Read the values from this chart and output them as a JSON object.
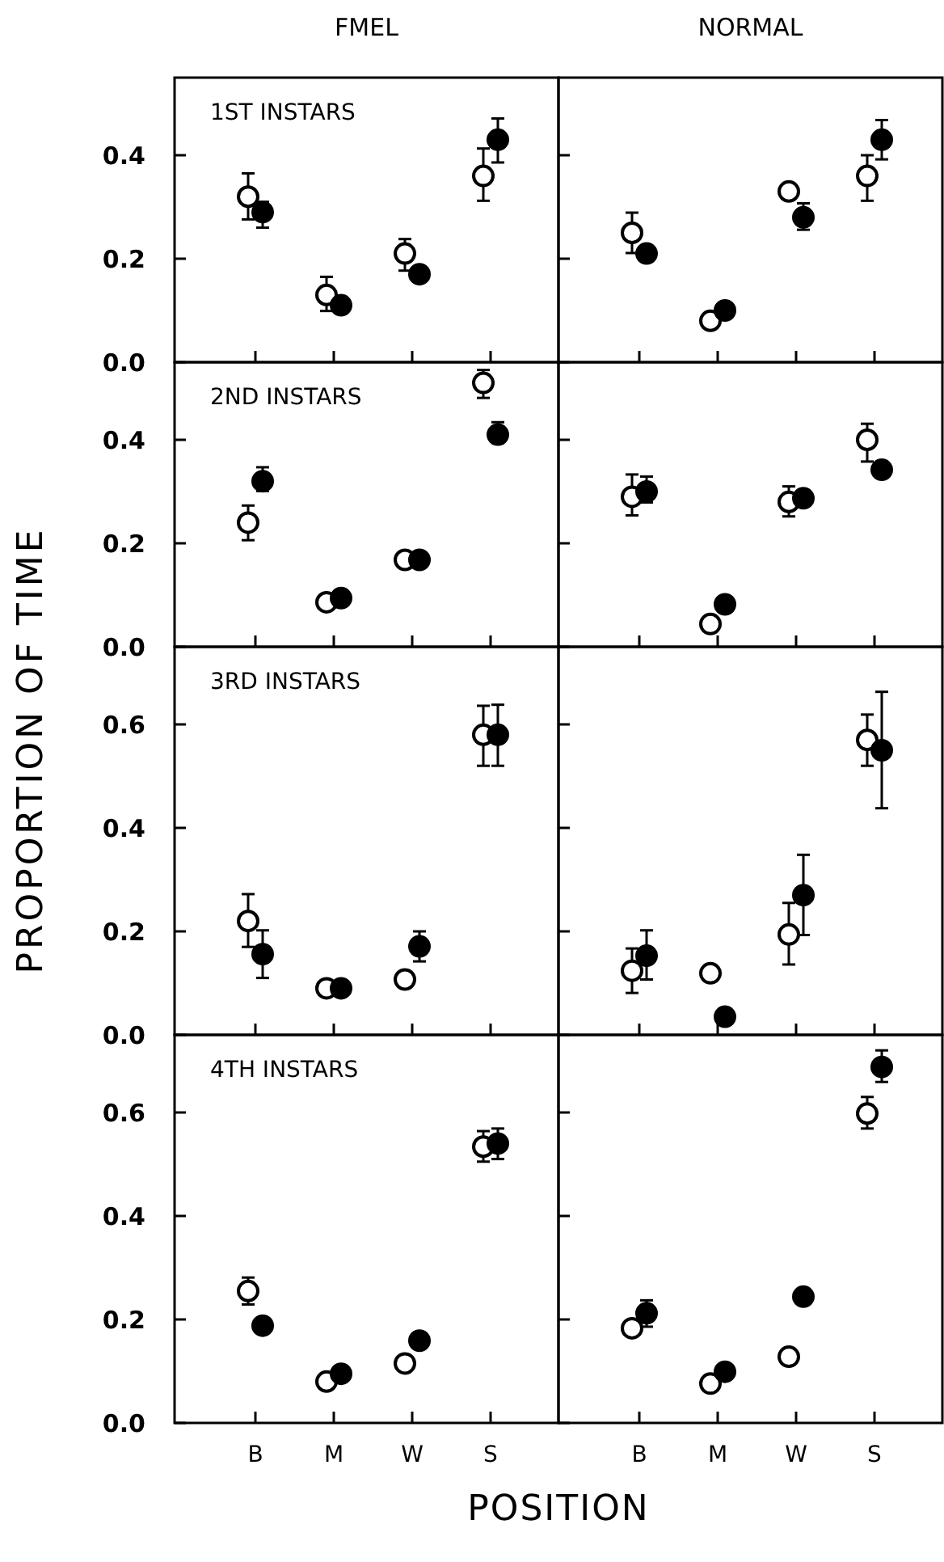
{
  "chart_data": [
    {
      "type": "scatter",
      "title": "FMEL",
      "annotations": [
        "1ST INSTARS"
      ],
      "categories": [
        "B",
        "M",
        "W",
        "S"
      ],
      "ylim": [
        0,
        0.55
      ],
      "yticks": [
        {
          "value": 0,
          "label": "0.0"
        },
        {
          "value": 0.2,
          "label": "0.2"
        },
        {
          "value": 0.4,
          "label": "0.4"
        }
      ],
      "tick_labels": "y",
      "marker": "circle",
      "series": [
        {
          "color": "#ffffff",
          "values": [
            0.32,
            0.13,
            0.21,
            0.36
          ],
          "errors": [
            [
              0.276,
              0.365
            ],
            [
              0.099,
              0.165
            ],
            [
              0.177,
              0.238
            ],
            [
              0.312,
              0.413
            ]
          ]
        },
        {
          "color": "#000000",
          "values": [
            0.29,
            0.11,
            0.17,
            0.43
          ],
          "errors": [
            [
              0.26,
              0.31
            ],
            null,
            null,
            [
              0.386,
              0.471
            ]
          ]
        }
      ]
    },
    {
      "type": "scatter",
      "title": "NORMAL",
      "categories": [
        "B",
        "M",
        "W",
        "S"
      ],
      "ylim": [
        0,
        0.55
      ],
      "yticks": [
        {
          "value": 0,
          "label": "0.0"
        },
        {
          "value": 0.2,
          "label": "0.2"
        },
        {
          "value": 0.4,
          "label": "0.4"
        }
      ],
      "tick_labels": false,
      "marker": "circle",
      "series": [
        {
          "color": "#ffffff",
          "values": [
            0.25,
            0.08,
            0.33,
            0.36
          ],
          "errors": [
            [
              0.211,
              0.289
            ],
            null,
            null,
            [
              0.312,
              0.4
            ]
          ]
        },
        {
          "color": "#000000",
          "values": [
            0.21,
            0.1,
            0.28,
            0.43
          ],
          "errors": [
            null,
            null,
            [
              0.256,
              0.307
            ],
            [
              0.392,
              0.468
            ]
          ]
        }
      ]
    },
    {
      "type": "scatter",
      "ylabel": "PROPORTION OF TIME",
      "annotations": [
        "2ND INSTARS"
      ],
      "categories": [
        "B",
        "M",
        "W",
        "S"
      ],
      "ylim": [
        0,
        0.55
      ],
      "yticks": [
        {
          "value": 0,
          "label": "0.0"
        },
        {
          "value": 0.2,
          "label": "0.2"
        },
        {
          "value": 0.4,
          "label": "0.4"
        }
      ],
      "tick_labels": "y",
      "marker": "circle",
      "series": [
        {
          "color": "#ffffff",
          "values": [
            0.24,
            0.086,
            0.168,
            0.51
          ],
          "errors": [
            [
              0.206,
              0.273
            ],
            null,
            null,
            [
              0.481,
              0.535
            ]
          ]
        },
        {
          "color": "#000000",
          "values": [
            0.32,
            0.094,
            0.168,
            0.41
          ],
          "errors": [
            [
              0.301,
              0.347
            ],
            null,
            null,
            [
              0.394,
              0.434
            ]
          ]
        }
      ]
    },
    {
      "type": "scatter",
      "categories": [
        "B",
        "M",
        "W",
        "S"
      ],
      "ylim": [
        0,
        0.55
      ],
      "yticks": [
        {
          "value": 0,
          "label": "0.0"
        },
        {
          "value": 0.2,
          "label": "0.2"
        },
        {
          "value": 0.4,
          "label": "0.4"
        }
      ],
      "tick_labels": false,
      "marker": "circle",
      "series": [
        {
          "color": "#ffffff",
          "values": [
            0.29,
            0.044,
            0.28,
            0.4
          ],
          "errors": [
            [
              0.254,
              0.333
            ],
            null,
            [
              0.252,
              0.31
            ],
            [
              0.358,
              0.431
            ]
          ]
        },
        {
          "color": "#000000",
          "values": [
            0.3,
            0.082,
            0.287,
            0.342
          ],
          "errors": [
            [
              0.279,
              0.329
            ],
            null,
            null,
            null
          ]
        }
      ]
    },
    {
      "type": "scatter",
      "annotations": [
        "3RD INSTARS"
      ],
      "categories": [
        "B",
        "M",
        "W",
        "S"
      ],
      "ylim": [
        0,
        0.75
      ],
      "yticks": [
        {
          "value": 0,
          "label": "0.0"
        },
        {
          "value": 0.2,
          "label": "0.2"
        },
        {
          "value": 0.4,
          "label": "0.4"
        },
        {
          "value": 0.6,
          "label": "0.6"
        }
      ],
      "tick_labels": "y",
      "marker": "circle",
      "series": [
        {
          "color": "#ffffff",
          "values": [
            0.22,
            0.09,
            0.107,
            0.58
          ],
          "errors": [
            [
              0.17,
              0.272
            ],
            null,
            null,
            [
              0.52,
              0.636
            ]
          ]
        },
        {
          "color": "#000000",
          "values": [
            0.156,
            0.09,
            0.171,
            0.58
          ],
          "errors": [
            [
              0.11,
              0.202
            ],
            null,
            [
              0.142,
              0.2
            ],
            [
              0.52,
              0.638
            ]
          ]
        }
      ]
    },
    {
      "type": "scatter",
      "categories": [
        "B",
        "M",
        "W",
        "S"
      ],
      "ylim": [
        0,
        0.75
      ],
      "yticks": [
        {
          "value": 0,
          "label": "0.0"
        },
        {
          "value": 0.2,
          "label": "0.2"
        },
        {
          "value": 0.4,
          "label": "0.4"
        },
        {
          "value": 0.6,
          "label": "0.6"
        }
      ],
      "tick_labels": false,
      "marker": "circle",
      "series": [
        {
          "color": "#ffffff",
          "values": [
            0.124,
            0.119,
            0.194,
            0.57
          ],
          "errors": [
            [
              0.081,
              0.167
            ],
            null,
            [
              0.136,
              0.255
            ],
            [
              0.52,
              0.619
            ]
          ]
        },
        {
          "color": "#000000",
          "values": [
            0.153,
            0.035,
            0.27,
            0.55
          ],
          "errors": [
            [
              0.107,
              0.202
            ],
            null,
            [
              0.193,
              0.348
            ],
            [
              0.438,
              0.663
            ]
          ]
        }
      ]
    },
    {
      "type": "scatter",
      "xlabel": "POSITION",
      "annotations": [
        "4TH INSTARS"
      ],
      "categories": [
        "B",
        "M",
        "W",
        "S"
      ],
      "ylim": [
        0,
        0.75
      ],
      "yticks": [
        {
          "value": 0,
          "label": "0.0"
        },
        {
          "value": 0.2,
          "label": "0.2"
        },
        {
          "value": 0.4,
          "label": "0.4"
        },
        {
          "value": 0.6,
          "label": "0.6"
        }
      ],
      "marker": "circle",
      "series": [
        {
          "color": "#ffffff",
          "values": [
            0.255,
            0.08,
            0.115,
            0.534
          ],
          "errors": [
            [
              0.229,
              0.281
            ],
            null,
            null,
            [
              0.505,
              0.564
            ]
          ]
        },
        {
          "color": "#000000",
          "values": [
            0.188,
            0.095,
            0.159,
            0.54
          ],
          "errors": [
            null,
            null,
            null,
            [
              0.51,
              0.569
            ]
          ]
        }
      ]
    },
    {
      "type": "scatter",
      "categories": [
        "B",
        "M",
        "W",
        "S"
      ],
      "ylim": [
        0,
        0.75
      ],
      "yticks": [
        {
          "value": 0,
          "label": "0.0"
        },
        {
          "value": 0.2,
          "label": "0.2"
        },
        {
          "value": 0.4,
          "label": "0.4"
        },
        {
          "value": 0.6,
          "label": "0.6"
        }
      ],
      "tick_labels": "x",
      "marker": "circle",
      "series": [
        {
          "color": "#ffffff",
          "values": [
            0.183,
            0.076,
            0.128,
            0.598
          ],
          "errors": [
            null,
            null,
            null,
            [
              0.569,
              0.63
            ]
          ]
        },
        {
          "color": "#000000",
          "values": [
            0.212,
            0.099,
            0.244,
            0.688
          ],
          "errors": [
            [
              0.186,
              0.237
            ],
            null,
            null,
            [
              0.659,
              0.72
            ]
          ]
        }
      ]
    }
  ]
}
